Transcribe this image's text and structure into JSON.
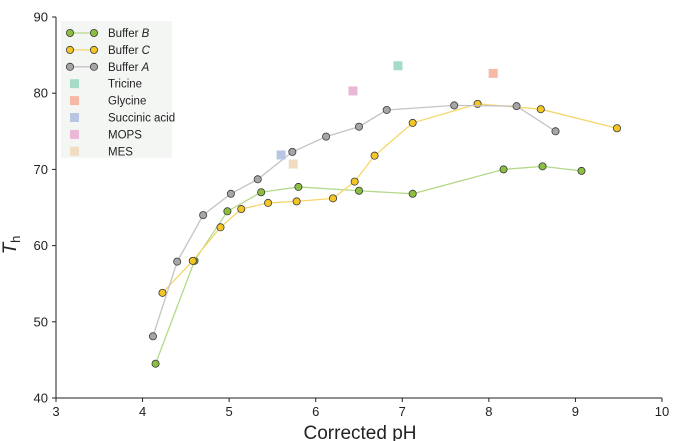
{
  "chart_data": {
    "type": "scatter",
    "xlabel": "Corrected pH",
    "ylabel": "T",
    "ylabel_sub": "h",
    "xlim": [
      3,
      10
    ],
    "ylim": [
      40,
      90
    ],
    "xticks": [
      3,
      4,
      5,
      6,
      7,
      8,
      9,
      10
    ],
    "yticks": [
      40,
      50,
      60,
      70,
      80,
      90
    ],
    "grid": false,
    "legend_position": "top-left",
    "series": [
      {
        "name": "Buffer B",
        "name_plain": "Buffer ",
        "name_italic": "B",
        "kind": "line",
        "color": "#8cbf3f",
        "line_color": "#b5d98a",
        "points": [
          [
            4.15,
            44.5
          ],
          [
            4.6,
            58.0
          ],
          [
            4.98,
            64.5
          ],
          [
            5.37,
            67.0
          ],
          [
            5.8,
            67.7
          ],
          [
            6.5,
            67.2
          ],
          [
            7.12,
            66.8
          ],
          [
            8.17,
            70.0
          ],
          [
            8.62,
            70.4
          ],
          [
            9.07,
            69.8
          ]
        ]
      },
      {
        "name": "Buffer C",
        "name_plain": "Buffer ",
        "name_italic": "C",
        "kind": "line",
        "color": "#f3c623",
        "line_color": "#f5d66a",
        "points": [
          [
            4.23,
            53.8
          ],
          [
            4.58,
            58.0
          ],
          [
            4.9,
            62.4
          ],
          [
            5.14,
            64.8
          ],
          [
            5.45,
            65.6
          ],
          [
            5.78,
            65.8
          ],
          [
            6.2,
            66.2
          ],
          [
            6.45,
            68.4
          ],
          [
            6.68,
            71.8
          ],
          [
            7.12,
            76.1
          ],
          [
            7.87,
            78.6
          ],
          [
            8.6,
            77.9
          ],
          [
            9.48,
            75.4
          ]
        ]
      },
      {
        "name": "Buffer A",
        "name_plain": "Buffer ",
        "name_italic": "A",
        "kind": "line",
        "color": "#a6a6a6",
        "line_color": "#c4c4c4",
        "points": [
          [
            4.12,
            48.1
          ],
          [
            4.4,
            57.9
          ],
          [
            4.7,
            64.0
          ],
          [
            5.02,
            66.8
          ],
          [
            5.33,
            68.7
          ],
          [
            5.73,
            72.3
          ],
          [
            6.12,
            74.3
          ],
          [
            6.5,
            75.6
          ],
          [
            6.82,
            77.8
          ],
          [
            7.6,
            78.4
          ],
          [
            8.32,
            78.3
          ],
          [
            8.77,
            75.0
          ]
        ]
      },
      {
        "name": "Tricine",
        "kind": "marker",
        "color": "#a6dbc8",
        "points": [
          [
            6.95,
            83.6
          ]
        ]
      },
      {
        "name": "Glycine",
        "kind": "marker",
        "color": "#f7b8a6",
        "points": [
          [
            8.05,
            82.6
          ]
        ]
      },
      {
        "name": "Succinic acid",
        "kind": "marker",
        "color": "#b8c6e3",
        "points": [
          [
            5.6,
            71.9
          ]
        ]
      },
      {
        "name": "MOPS",
        "kind": "marker",
        "color": "#eab8d6",
        "points": [
          [
            6.43,
            80.3
          ]
        ]
      },
      {
        "name": "MES",
        "kind": "marker",
        "color": "#f0dcc2",
        "points": [
          [
            5.74,
            70.7
          ]
        ]
      }
    ]
  }
}
